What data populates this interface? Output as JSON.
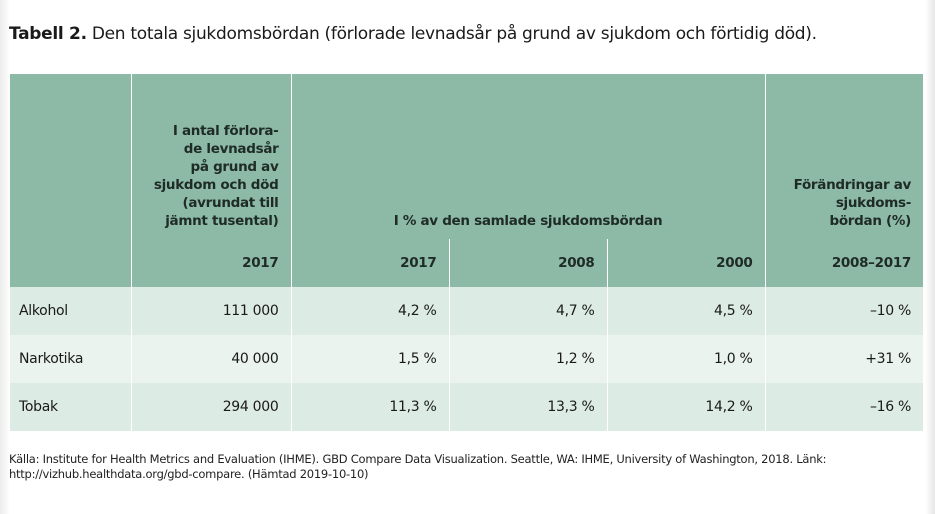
{
  "caption": {
    "number": "Tabell 2.",
    "text": " Den totala sjukdomsbördan (förlorade levnadsår på grund av sjukdom och förtidig död)."
  },
  "table": {
    "header": {
      "col1_group": "I antal förlora-\nde levnadsår\npå grund av\nsjukdom och död\n(avrundat till\njämnt tusental)",
      "percent_group": "I % av den samlade sjukdomsbördan",
      "change_group": "Förändringar av\nsjukdoms-\nbördan (%)",
      "years": [
        "2017",
        "2017",
        "2008",
        "2000",
        "2008–2017"
      ]
    },
    "rows": [
      {
        "label": "Alkohol",
        "values": [
          "111 000",
          "4,2 %",
          "4,7 %",
          "4,5 %",
          "–10 %"
        ]
      },
      {
        "label": "Narkotika",
        "values": [
          "40 000",
          "1,5 %",
          "1,2 %",
          "1,0 %",
          "+31 %"
        ]
      },
      {
        "label": "Tobak",
        "values": [
          "294 000",
          "11,3 %",
          "13,3 %",
          "14,2 %",
          "–16 %"
        ]
      }
    ]
  },
  "source": "Källa: Institute for Health Metrics and Evaluation (IHME). GBD Compare Data Visualization. Seattle, WA: IHME, University of Washington, 2018. Länk: http://vizhub.healthdata.org/gbd-compare. (Hämtad 2019-10-10)",
  "colors": {
    "header_bg": "#8cbaa6",
    "row_dark": "#dcebe3",
    "row_light": "#eaf3ee"
  }
}
